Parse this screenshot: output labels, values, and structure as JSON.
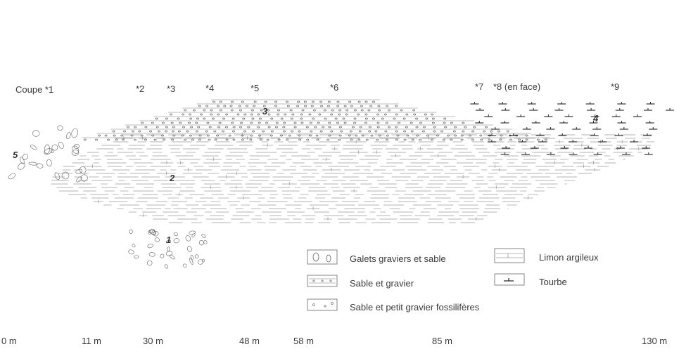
{
  "profile": {
    "sections": [
      {
        "id": "coupe-1",
        "label": "Coupe *1"
      },
      {
        "id": "section-2",
        "label": "*2"
      },
      {
        "id": "section-3",
        "label": "*3"
      },
      {
        "id": "section-4",
        "label": "*4"
      },
      {
        "id": "section-5",
        "label": "*5"
      },
      {
        "id": "section-6",
        "label": "*6"
      },
      {
        "id": "section-7",
        "label": "*7"
      },
      {
        "id": "section-8",
        "label": "*8 (en face)"
      },
      {
        "id": "section-9",
        "label": "*9"
      }
    ],
    "units": [
      "1",
      "2",
      "3",
      "4",
      "5"
    ],
    "distances": [
      "0 m",
      "11 m",
      "30 m",
      "48 m",
      "58 m",
      "85 m",
      "130 m"
    ]
  },
  "legend": {
    "galets": "Galets graviers et sable",
    "limon": "Limon argileux",
    "sable_gravier": "Sable et gravier",
    "tourbe": "Tourbe",
    "sable_fossiliferes": "Sable et petit gravier fossilifères"
  }
}
